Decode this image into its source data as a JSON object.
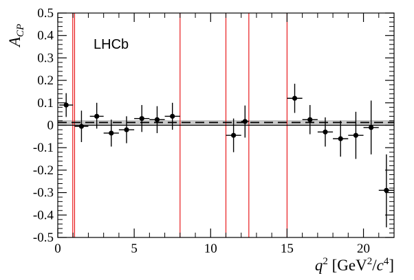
{
  "chart_data": {
    "type": "scatter",
    "logo": "LHCb",
    "xlabel": {
      "base": "q",
      "sup": "2",
      "open": " [GeV",
      "unit_sup": "2",
      "slash": "/",
      "c": "c",
      "c_sup": "4",
      "close": "]"
    },
    "ylabel": {
      "base": "A",
      "sub": "CP"
    },
    "xlim": [
      0,
      22
    ],
    "ylim": [
      -0.5,
      0.5
    ],
    "x_ticks": [
      0,
      5,
      10,
      15,
      20
    ],
    "y_ticks": [
      -0.5,
      -0.4,
      -0.3,
      -0.2,
      -0.1,
      0,
      0.1,
      0.2,
      0.3,
      0.4,
      0.5
    ],
    "x_tick_labels": [
      "0",
      "5",
      "10",
      "15",
      "20"
    ],
    "y_tick_labels": [
      "-0.5",
      "-0.4",
      "-0.3",
      "-0.2",
      "-0.1",
      "0",
      "0.1",
      "0.2",
      "0.3",
      "0.4",
      "0.5"
    ],
    "vertical_lines": [
      0.98,
      1.1,
      8.0,
      11.0,
      12.5,
      15.0
    ],
    "average": {
      "value": 0.0125,
      "band": [
        0.002,
        0.023
      ]
    },
    "reference_line": 0,
    "points": [
      {
        "x": 0.55,
        "xerr": 0.45,
        "y": 0.09,
        "ylo": 0.037,
        "yhi": 0.143
      },
      {
        "x": 1.55,
        "xerr": 0.45,
        "y": -0.005,
        "ylo": -0.075,
        "yhi": 0.065
      },
      {
        "x": 2.55,
        "xerr": 0.45,
        "y": 0.04,
        "ylo": -0.015,
        "yhi": 0.1
      },
      {
        "x": 3.5,
        "xerr": 0.5,
        "y": -0.035,
        "ylo": -0.095,
        "yhi": 0.025
      },
      {
        "x": 4.5,
        "xerr": 0.5,
        "y": -0.02,
        "ylo": -0.08,
        "yhi": 0.04
      },
      {
        "x": 5.5,
        "xerr": 0.5,
        "y": 0.03,
        "ylo": -0.03,
        "yhi": 0.09
      },
      {
        "x": 6.5,
        "xerr": 0.5,
        "y": 0.025,
        "ylo": -0.035,
        "yhi": 0.085
      },
      {
        "x": 7.5,
        "xerr": 0.5,
        "y": 0.04,
        "ylo": -0.02,
        "yhi": 0.1
      },
      {
        "x": 11.5,
        "xerr": 0.5,
        "y": -0.045,
        "ylo": -0.12,
        "yhi": 0.03
      },
      {
        "x": 12.25,
        "xerr": 0.25,
        "y": 0.017,
        "ylo": -0.055,
        "yhi": 0.088
      },
      {
        "x": 15.5,
        "xerr": 0.5,
        "y": 0.12,
        "ylo": 0.055,
        "yhi": 0.185
      },
      {
        "x": 16.5,
        "xerr": 0.5,
        "y": 0.025,
        "ylo": -0.04,
        "yhi": 0.09
      },
      {
        "x": 17.5,
        "xerr": 0.5,
        "y": -0.03,
        "ylo": -0.095,
        "yhi": 0.035
      },
      {
        "x": 18.5,
        "xerr": 0.5,
        "y": -0.06,
        "ylo": -0.14,
        "yhi": 0.02
      },
      {
        "x": 19.5,
        "xerr": 0.5,
        "y": -0.045,
        "ylo": -0.15,
        "yhi": 0.06
      },
      {
        "x": 20.5,
        "xerr": 0.5,
        "y": -0.01,
        "ylo": -0.13,
        "yhi": 0.11
      },
      {
        "x": 21.5,
        "xerr": 0.5,
        "y": -0.29,
        "ylo": -0.455,
        "yhi": -0.13
      }
    ],
    "colors": {
      "points": "#000000",
      "vertical_lines": "#e8191c",
      "band": "#c8c8c8",
      "average_line": "#000000",
      "reference_line": "#000000",
      "axes": "#000000"
    }
  }
}
